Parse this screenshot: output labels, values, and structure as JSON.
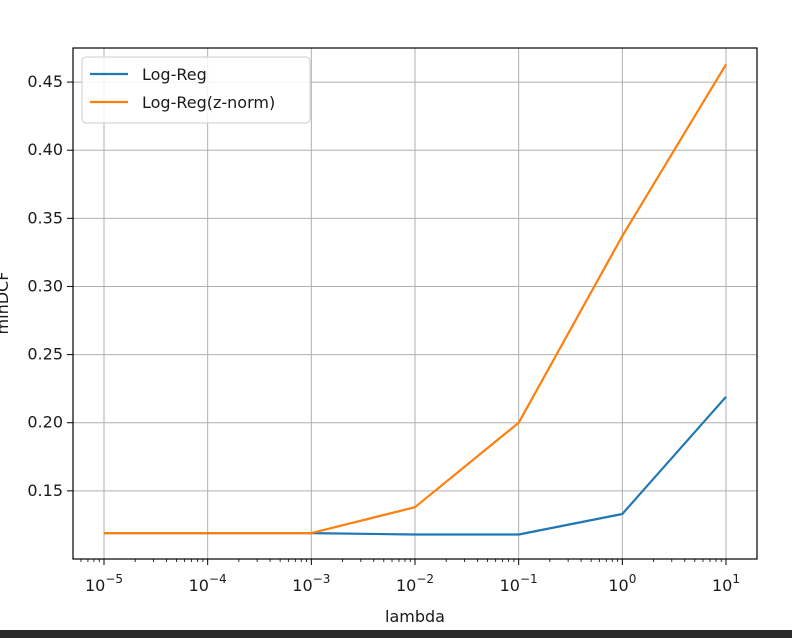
{
  "chart_data": {
    "type": "line",
    "xlabel": "lambda",
    "ylabel": "minDCF",
    "x": [
      "10^-5",
      "10^-4",
      "10^-3",
      "10^-2",
      "10^-1",
      "10^0",
      "10^1"
    ],
    "xscale": "log",
    "xlim": [
      5e-06,
      20
    ],
    "ylim": [
      0.1,
      0.475
    ],
    "y_ticks": [
      "0.15",
      "0.20",
      "0.25",
      "0.30",
      "0.35",
      "0.40",
      "0.45"
    ],
    "x_tick_labels": [
      {
        "base": "10",
        "exp": "−5"
      },
      {
        "base": "10",
        "exp": "−4"
      },
      {
        "base": "10",
        "exp": "−3"
      },
      {
        "base": "10",
        "exp": "−2"
      },
      {
        "base": "10",
        "exp": "−1"
      },
      {
        "base": "10",
        "exp": "0"
      },
      {
        "base": "10",
        "exp": "1"
      }
    ],
    "grid": true,
    "legend_position": "top-left",
    "series": [
      {
        "name": "Log-Reg",
        "color": "#1f77b4",
        "values": [
          0.119,
          0.119,
          0.119,
          0.118,
          0.118,
          0.133,
          0.219
        ]
      },
      {
        "name": "Log-Reg(z-norm)",
        "color": "#ff7f0e",
        "values": [
          0.119,
          0.119,
          0.119,
          0.138,
          0.2,
          0.337,
          0.463
        ]
      }
    ]
  }
}
